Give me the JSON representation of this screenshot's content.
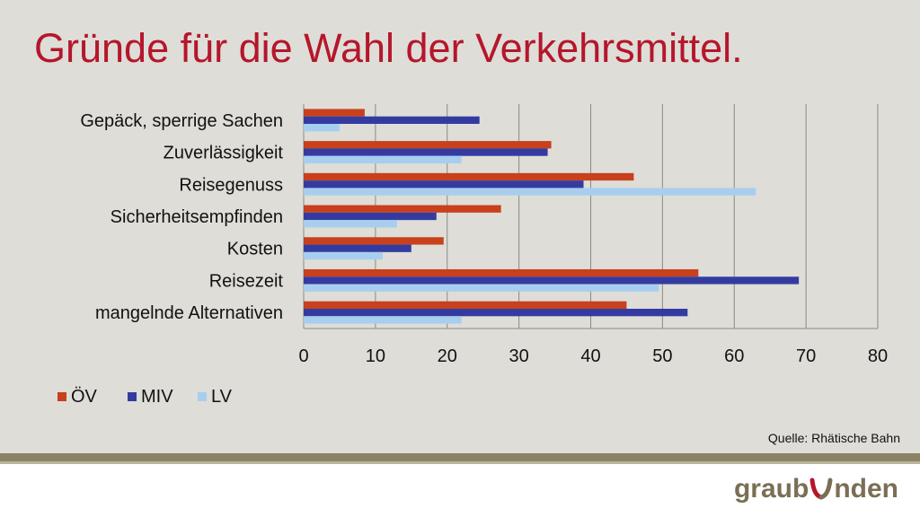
{
  "title": "Gründe für die Wahl der Verkehrsmittel.",
  "source": "Quelle: Rhätische Bahn",
  "logo_text": "graubünden",
  "logo_parts": [
    "graub",
    "nden"
  ],
  "colors": {
    "title": "#b5162b",
    "background": "#deddd8"
  },
  "chart_data": {
    "type": "bar",
    "orientation": "horizontal",
    "categories": [
      "Gepäck, sperrige Sachen",
      "Zuverlässigkeit",
      "Reisegenuss",
      "Sicherheitsempfinden",
      "Kosten",
      "Reisezeit",
      "mangelnde Alternativen"
    ],
    "series": [
      {
        "name": "ÖV",
        "color": "#c8401c",
        "values": [
          8.5,
          34.5,
          46,
          27.5,
          19.5,
          55,
          45
        ]
      },
      {
        "name": "MIV",
        "color": "#343ba0",
        "values": [
          24.5,
          34,
          39,
          18.5,
          15,
          69,
          53.5
        ]
      },
      {
        "name": "LV",
        "color": "#a8ceef",
        "values": [
          5,
          22,
          63,
          13,
          11,
          49.5,
          22
        ]
      }
    ],
    "xlim": [
      0,
      80
    ],
    "xticks": [
      "0",
      "10",
      "20",
      "30",
      "40",
      "50",
      "60",
      "70",
      "80"
    ],
    "grid": true,
    "legend_position": "bottom-left"
  }
}
